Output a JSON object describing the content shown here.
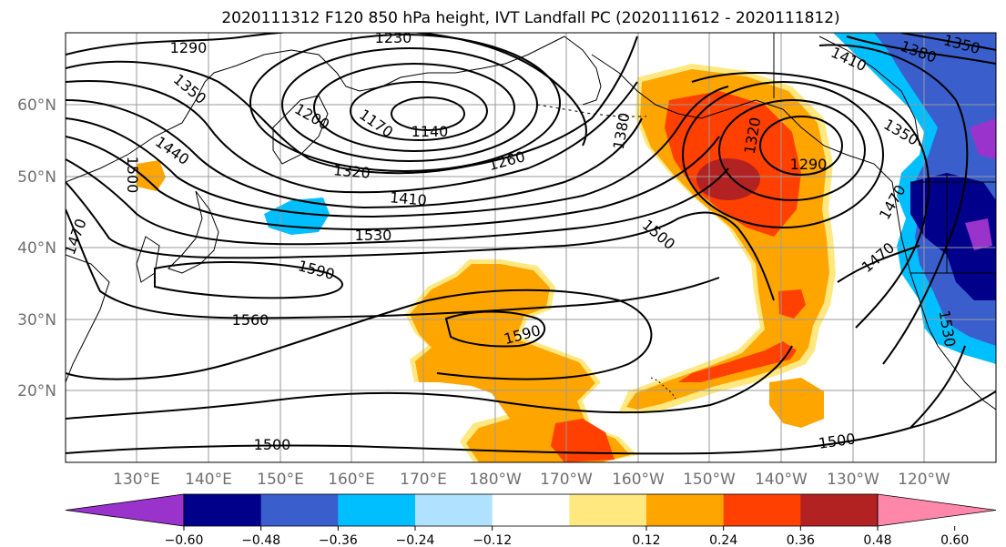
{
  "title": "2020111312 F120 850 hPa height, IVT Landfall PC (2020111612 - 2020111812)",
  "lat_labels": [
    "60°N",
    "50°N",
    "40°N",
    "30°N",
    "20°N"
  ],
  "lon_labels": [
    "130°E",
    "140°E",
    "150°E",
    "160°E",
    "170°E",
    "180°W",
    "170°W",
    "160°W",
    "150°W",
    "140°W",
    "130°W",
    "120°W"
  ],
  "contour_labels": [
    "1290",
    "1230",
    "1350",
    "1200",
    "1170",
    "1140",
    "1440",
    "1500",
    "1320",
    "1260",
    "1380",
    "1410",
    "1320",
    "1290",
    "1410",
    "1380",
    "1350",
    "1350",
    "1530",
    "1500",
    "1470",
    "1590",
    "1560",
    "1590",
    "1500",
    "1500",
    "1470",
    "1470",
    "1530"
  ],
  "colorbar": {
    "ticks": [
      "−0.60",
      "−0.48",
      "−0.36",
      "−0.24",
      "−0.12",
      "0.12",
      "0.24",
      "0.36",
      "0.48",
      "0.60"
    ],
    "colors": [
      "#9933cc",
      "#00008b",
      "#3a5fcd",
      "#00bfff",
      "#b0e2ff",
      "#ffffff",
      "#ffe880",
      "#ffa500",
      "#ff4000",
      "#b22222",
      "#ff88aa"
    ]
  },
  "shading_colors": {
    "neg_light": "#00bfff",
    "neg_mid": "#3a5fcd",
    "neg_dark": "#00008b",
    "neg_purple": "#9933cc",
    "pos_light": "#ffe880",
    "pos_mid": "#ffa500",
    "pos_high": "#ff4000",
    "pos_max": "#b22222"
  }
}
